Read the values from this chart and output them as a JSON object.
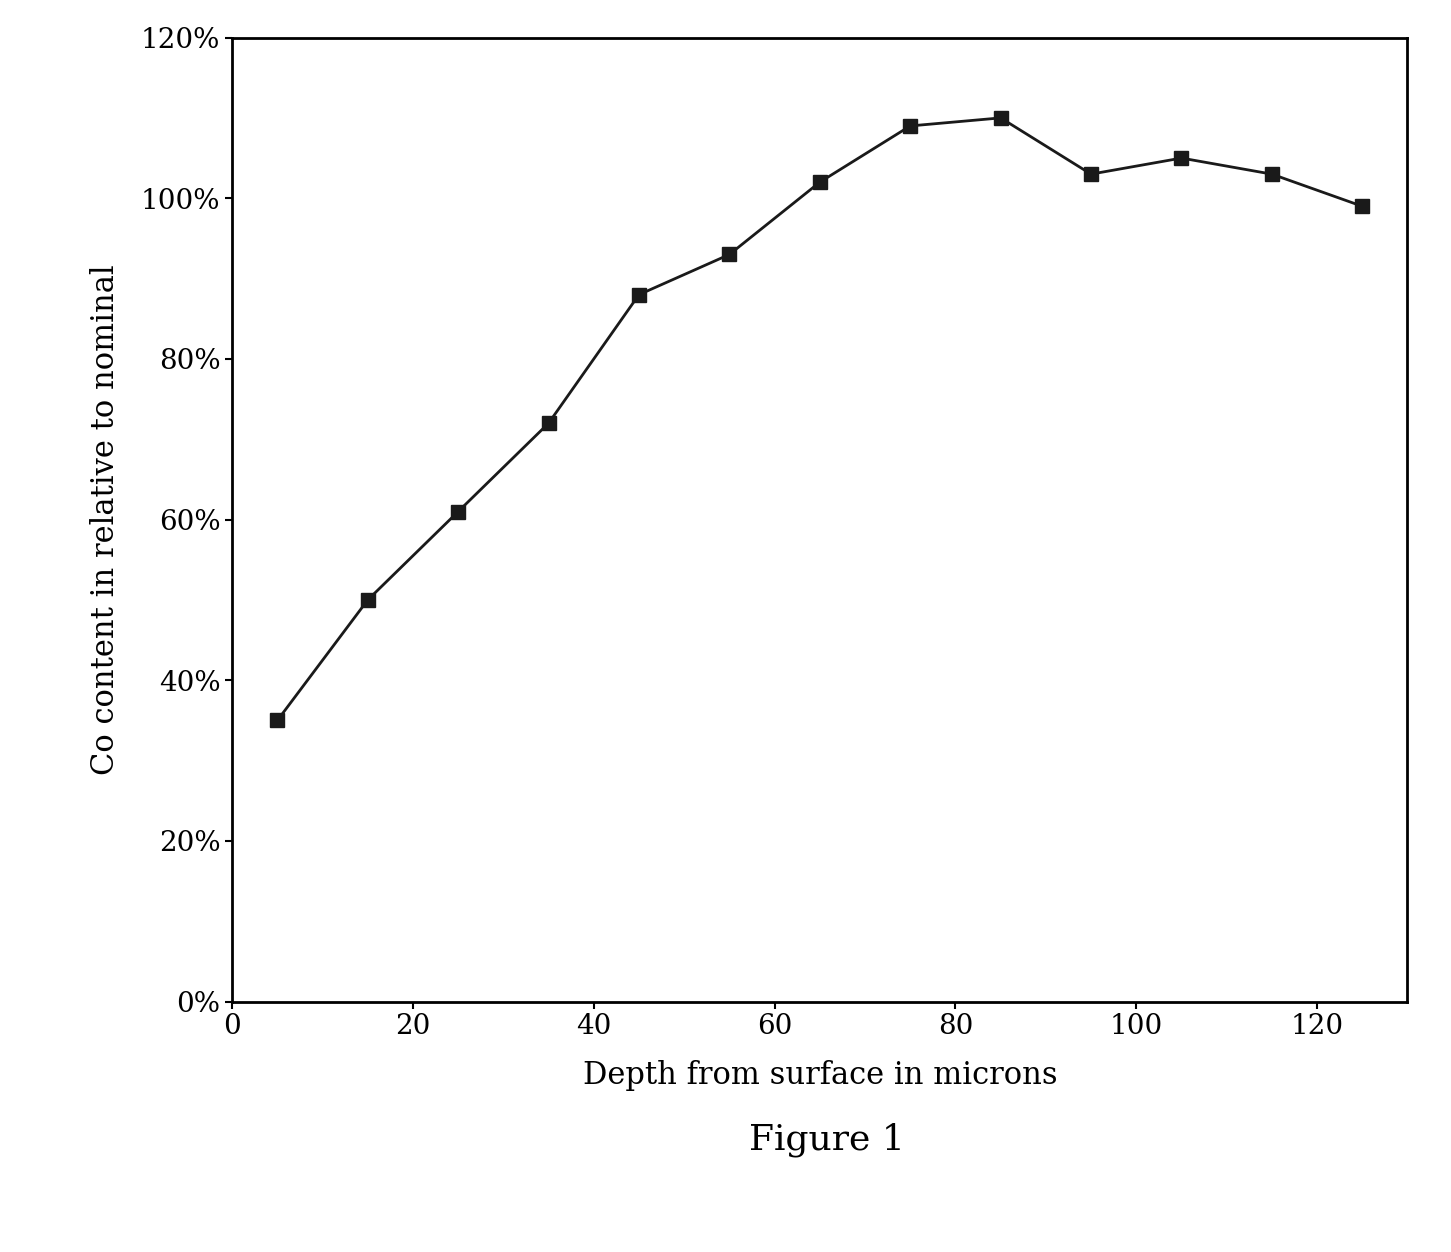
{
  "x": [
    5,
    15,
    25,
    35,
    45,
    55,
    65,
    75,
    85,
    95,
    105,
    115,
    125
  ],
  "y": [
    0.35,
    0.5,
    0.61,
    0.72,
    0.88,
    0.93,
    1.02,
    1.09,
    1.1,
    1.03,
    1.05,
    1.03,
    0.99
  ],
  "xlabel": "Depth from surface in microns",
  "ylabel": "Co content in relative to nominal",
  "figure_label": "Figure 1",
  "xlim": [
    0,
    130
  ],
  "ylim": [
    0.0,
    1.2
  ],
  "xticks": [
    0,
    20,
    40,
    60,
    80,
    100,
    120
  ],
  "yticks": [
    0.0,
    0.2,
    0.4,
    0.6,
    0.8,
    1.0,
    1.2
  ],
  "ytick_labels": [
    "0%",
    "20%",
    "40%",
    "60%",
    "80%",
    "100%",
    "120%"
  ],
  "line_color": "#1a1a1a",
  "marker": "s",
  "marker_size": 10,
  "marker_color": "#1a1a1a",
  "line_width": 2.0,
  "background_color": "#ffffff",
  "label_fontsize": 22,
  "tick_fontsize": 20,
  "figure_label_fontsize": 26
}
